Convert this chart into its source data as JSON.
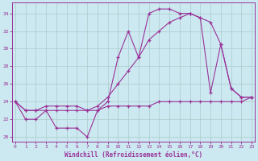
{
  "xlabel": "Windchill (Refroidissement éolien,°C)",
  "bg_color": "#cce8f0",
  "line_color": "#993399",
  "grid_color": "#aacccc",
  "x_ticks": [
    0,
    1,
    2,
    3,
    4,
    5,
    6,
    7,
    8,
    9,
    10,
    11,
    12,
    13,
    14,
    15,
    16,
    17,
    18,
    19,
    20,
    21,
    22,
    23
  ],
  "y_ticks": [
    20,
    22,
    24,
    26,
    28,
    30,
    32,
    34
  ],
  "xlim": [
    -0.3,
    23.3
  ],
  "ylim": [
    19.5,
    35.2
  ],
  "y_zigzag": [
    24,
    22,
    22,
    23,
    21,
    21,
    21,
    20,
    23,
    24,
    29,
    32,
    29,
    34,
    34.5,
    34.5,
    34,
    34,
    33.5,
    25,
    30.5,
    25.5,
    24.5,
    24.5
  ],
  "y_flat": [
    24,
    23,
    23,
    23,
    23,
    23,
    23,
    23,
    23,
    23.5,
    23.5,
    23.5,
    23.5,
    23.5,
    24,
    24,
    24,
    24,
    24,
    24,
    24,
    24,
    24,
    24.5
  ],
  "y_diag": [
    24,
    23,
    23,
    23.5,
    23.5,
    23.5,
    23.5,
    23,
    23.5,
    24.5,
    26,
    27.5,
    29,
    31,
    32,
    33,
    33.5,
    34,
    33.5,
    33,
    30.5,
    25.5,
    24.5,
    24.5
  ]
}
